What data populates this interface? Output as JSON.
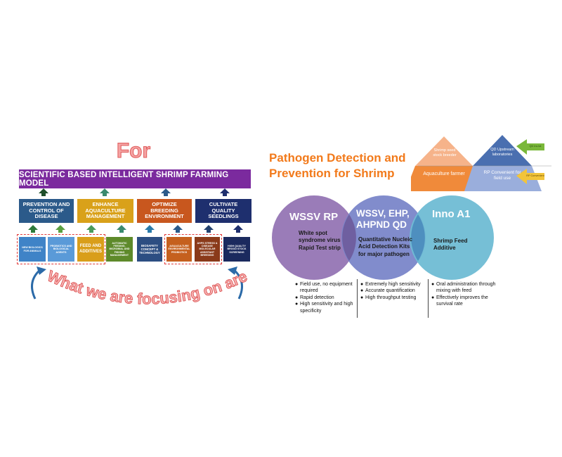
{
  "left": {
    "for_title": "For",
    "model_title": "SCIENTIFIC BASED INTELLIGENT SHRIMP FARMING MODEL",
    "categories": [
      {
        "label": "PREVENTION AND CONTROL OF DISEASE",
        "color": "#2b5a8a"
      },
      {
        "label": "ENHANCE AQUACULTURE MANAGEMENT",
        "color": "#d9a11a"
      },
      {
        "label": "OPTIMIZE BREEDING ENVIRONMENT",
        "color": "#c8571e"
      },
      {
        "label": "CULTIVATE QUALITY SEEDLINGS",
        "color": "#1e2f6e"
      }
    ],
    "subs": [
      {
        "label": "NEW BIOLOGICS FOR ANIMALS",
        "color": "#3f83c7"
      },
      {
        "label": "PROBIOTICS AND BIOLOGICAL AGENTS",
        "color": "#5a9ad8"
      },
      {
        "label": "FEED AND ADDITIVES",
        "color": "#d99e1a"
      },
      {
        "label": "AUTOMATIC FEEDING, MICROBIAL AND FISHING MANAGEMENT",
        "color": "#5e8a2a"
      },
      {
        "label": "BIOSAFETY CONCEPT & TECHNOLOGY",
        "color": "#2c4e82"
      },
      {
        "label": "AGUACULTURE ENVIRONMENTAL PROBIOTICS",
        "color": "#c5601e"
      },
      {
        "label": "AHPS STRESS & DISEASE MOLECULAR ASSISTANT BREEDING",
        "color": "#8a3a1a"
      },
      {
        "label": "HIGH QUALITY BROOD STOCK SCREENING",
        "color": "#1b2a5e"
      }
    ],
    "focus_text": "What we are focusing on are :"
  },
  "right": {
    "title_line1": "Pathogen Detection and",
    "title_line2": "Prevention for Shrimp",
    "triangles": {
      "left_top": "Shrimp seed stock breeder",
      "left_bottom": "Aquaculture farmer",
      "right_top": "QD Upstream laboratories",
      "right_bottom": "RP Convenient for field use",
      "arrow_green": "QD Inc.tst",
      "arrow_yellow": "RP Convenient"
    },
    "circles": [
      {
        "title": "WSSV RP",
        "body": "White spot syndrome virus Rapid Test strip",
        "color": "#9a7cb8"
      },
      {
        "title": "WSSV, EHP, AHPND QD",
        "body": "Quantitative Nucleic Acid Detection Kits for major pathogen",
        "color": "#7a86c9"
      },
      {
        "title": "Inno A1",
        "body": "Shrimp Feed Additive",
        "color": "#6fbcd4"
      }
    ],
    "bullets": [
      [
        "Field use, no equipment required",
        "Rapid detection",
        "High sensitivity and high specificity"
      ],
      [
        "Extremely high sensitivity",
        "Accurate quantification",
        "High throughput testing"
      ],
      [
        "Oral administration through mixing with feed",
        "Effectively improves the survival rate"
      ]
    ]
  }
}
